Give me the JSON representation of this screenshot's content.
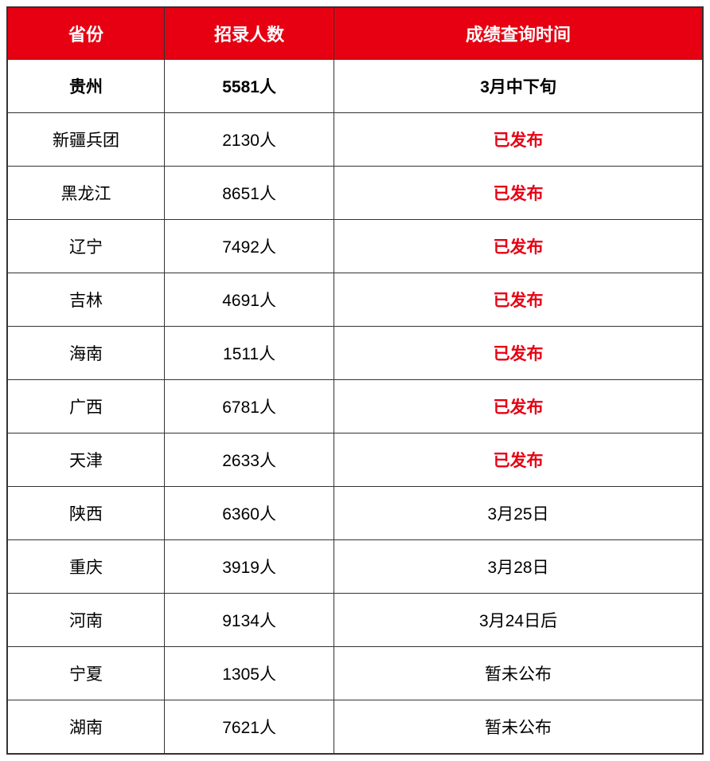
{
  "table": {
    "headers": {
      "province": "省份",
      "recruitment": "招录人数",
      "query_time": "成绩查询时间"
    },
    "colors": {
      "header_bg": "#e60012",
      "header_text": "#ffffff",
      "border": "#333333",
      "text": "#000000",
      "published": "#e60012",
      "row_bg": "#ffffff"
    },
    "layout": {
      "col1_width": 198,
      "col2_width": 214,
      "col3_width": 464,
      "header_fontsize": 22,
      "cell_fontsize": 21
    },
    "rows": [
      {
        "province": "贵州",
        "recruitment": "5581人",
        "query_time": "3月中下旬",
        "bold": true,
        "published": false
      },
      {
        "province": "新疆兵团",
        "recruitment": "2130人",
        "query_time": "已发布",
        "bold": false,
        "published": true
      },
      {
        "province": "黑龙江",
        "recruitment": "8651人",
        "query_time": "已发布",
        "bold": false,
        "published": true
      },
      {
        "province": "辽宁",
        "recruitment": "7492人",
        "query_time": "已发布",
        "bold": false,
        "published": true
      },
      {
        "province": "吉林",
        "recruitment": "4691人",
        "query_time": "已发布",
        "bold": false,
        "published": true
      },
      {
        "province": "海南",
        "recruitment": "1511人",
        "query_time": "已发布",
        "bold": false,
        "published": true
      },
      {
        "province": "广西",
        "recruitment": "6781人",
        "query_time": "已发布",
        "bold": false,
        "published": true
      },
      {
        "province": "天津",
        "recruitment": "2633人",
        "query_time": "已发布",
        "bold": false,
        "published": true
      },
      {
        "province": "陕西",
        "recruitment": "6360人",
        "query_time": "3月25日",
        "bold": false,
        "published": false
      },
      {
        "province": "重庆",
        "recruitment": "3919人",
        "query_time": "3月28日",
        "bold": false,
        "published": false
      },
      {
        "province": "河南",
        "recruitment": "9134人",
        "query_time": "3月24日后",
        "bold": false,
        "published": false
      },
      {
        "province": "宁夏",
        "recruitment": "1305人",
        "query_time": "暂未公布",
        "bold": false,
        "published": false
      },
      {
        "province": "湖南",
        "recruitment": "7621人",
        "query_time": "暂未公布",
        "bold": false,
        "published": false
      }
    ]
  }
}
